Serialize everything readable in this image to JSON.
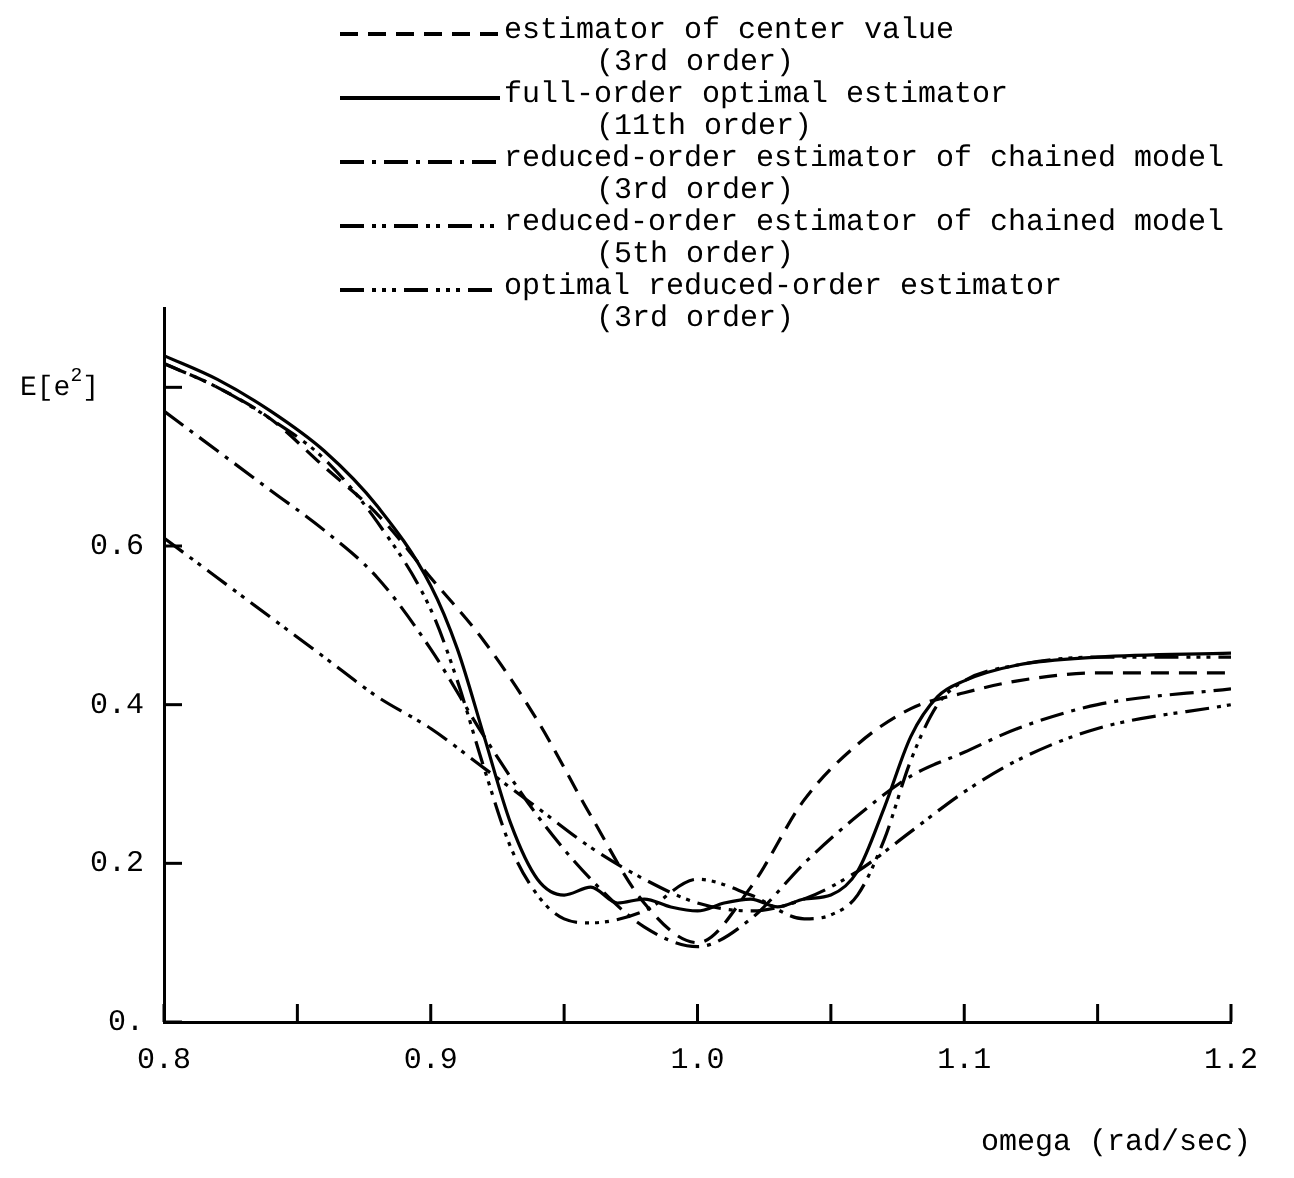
{
  "chart_data": {
    "type": "line",
    "xlabel": "omega (rad/sec)",
    "ylabel": "E[e$^{2}$]",
    "legend": "top",
    "xlim": [
      0.8,
      1.2
    ],
    "ylim": [
      0,
      0.9
    ],
    "xticks": [
      {
        "value": 0.8,
        "label": "0.8"
      },
      {
        "value": 0.85,
        "label": null
      },
      {
        "value": 0.9,
        "label": "0.9"
      },
      {
        "value": 0.95,
        "label": null
      },
      {
        "value": 1.0,
        "label": "1.0"
      },
      {
        "value": 1.05,
        "label": null
      },
      {
        "value": 1.1,
        "label": "1.1"
      },
      {
        "value": 1.15,
        "label": null
      },
      {
        "value": 1.2,
        "label": "1.2"
      }
    ],
    "yticks": [
      {
        "value": 0,
        "label": "0."
      },
      {
        "value": 0.2,
        "label": "0.2"
      },
      {
        "value": 0.4,
        "label": "0.4"
      },
      {
        "value": 0.6,
        "label": "0.6"
      },
      {
        "value": 0.8,
        "label": null
      }
    ],
    "series": [
      {
        "name": "estimator of center value\n(3rd order)",
        "color": "#000000",
        "line_style": "dashed",
        "x": [
          0.8,
          0.82,
          0.84,
          0.86,
          0.88,
          0.9,
          0.92,
          0.94,
          0.96,
          0.98,
          1.0,
          1.02,
          1.04,
          1.06,
          1.08,
          1.1,
          1.12,
          1.15,
          1.2
        ],
        "values": [
          0.83,
          0.8,
          0.76,
          0.7,
          0.64,
          0.56,
          0.48,
          0.38,
          0.26,
          0.15,
          0.1,
          0.17,
          0.28,
          0.35,
          0.395,
          0.415,
          0.43,
          0.44,
          0.44
        ]
      },
      {
        "name": "full-order optimal estimator\n(11th order)",
        "color": "#000000",
        "line_style": "solid",
        "x": [
          0.8,
          0.82,
          0.84,
          0.86,
          0.88,
          0.9,
          0.91,
          0.92,
          0.93,
          0.94,
          0.95,
          0.96,
          0.97,
          0.98,
          0.99,
          1.0,
          1.01,
          1.02,
          1.03,
          1.04,
          1.05,
          1.06,
          1.07,
          1.08,
          1.09,
          1.1,
          1.12,
          1.15,
          1.2
        ],
        "values": [
          0.84,
          0.81,
          0.77,
          0.72,
          0.65,
          0.55,
          0.47,
          0.36,
          0.25,
          0.18,
          0.16,
          0.17,
          0.15,
          0.155,
          0.145,
          0.14,
          0.15,
          0.155,
          0.145,
          0.155,
          0.16,
          0.19,
          0.27,
          0.36,
          0.41,
          0.43,
          0.45,
          0.46,
          0.465
        ]
      },
      {
        "name": "reduced-order estimator of chained model\n(3rd order)",
        "color": "#000000",
        "line_style": "dashdot",
        "x": [
          0.8,
          0.82,
          0.84,
          0.86,
          0.88,
          0.9,
          0.92,
          0.94,
          0.96,
          0.98,
          1.0,
          1.02,
          1.04,
          1.06,
          1.08,
          1.1,
          1.12,
          1.15,
          1.2
        ],
        "values": [
          0.77,
          0.72,
          0.67,
          0.62,
          0.56,
          0.47,
          0.36,
          0.26,
          0.18,
          0.12,
          0.095,
          0.13,
          0.2,
          0.26,
          0.31,
          0.34,
          0.37,
          0.4,
          0.42
        ]
      },
      {
        "name": "reduced-order estimator of chained model\n(5th order)",
        "color": "#000000",
        "line_style": "dashdotdot",
        "x": [
          0.8,
          0.82,
          0.84,
          0.86,
          0.88,
          0.9,
          0.92,
          0.94,
          0.96,
          0.98,
          1.0,
          1.02,
          1.04,
          1.06,
          1.08,
          1.1,
          1.12,
          1.15,
          1.2
        ],
        "values": [
          0.61,
          0.56,
          0.51,
          0.46,
          0.41,
          0.37,
          0.32,
          0.27,
          0.22,
          0.18,
          0.15,
          0.14,
          0.155,
          0.19,
          0.24,
          0.29,
          0.33,
          0.37,
          0.4
        ]
      },
      {
        "name": "optimal reduced-order estimator\n(3rd order)",
        "color": "#000000",
        "line_style": "dashdotdotdot",
        "x": [
          0.8,
          0.82,
          0.84,
          0.86,
          0.88,
          0.9,
          0.91,
          0.92,
          0.93,
          0.94,
          0.95,
          0.96,
          0.98,
          1.0,
          1.02,
          1.04,
          1.05,
          1.06,
          1.07,
          1.08,
          1.09,
          1.1,
          1.12,
          1.15,
          1.2
        ],
        "values": [
          0.83,
          0.8,
          0.76,
          0.71,
          0.63,
          0.52,
          0.43,
          0.32,
          0.22,
          0.16,
          0.13,
          0.125,
          0.14,
          0.18,
          0.16,
          0.13,
          0.135,
          0.16,
          0.23,
          0.33,
          0.4,
          0.43,
          0.45,
          0.46,
          0.46
        ]
      }
    ]
  }
}
